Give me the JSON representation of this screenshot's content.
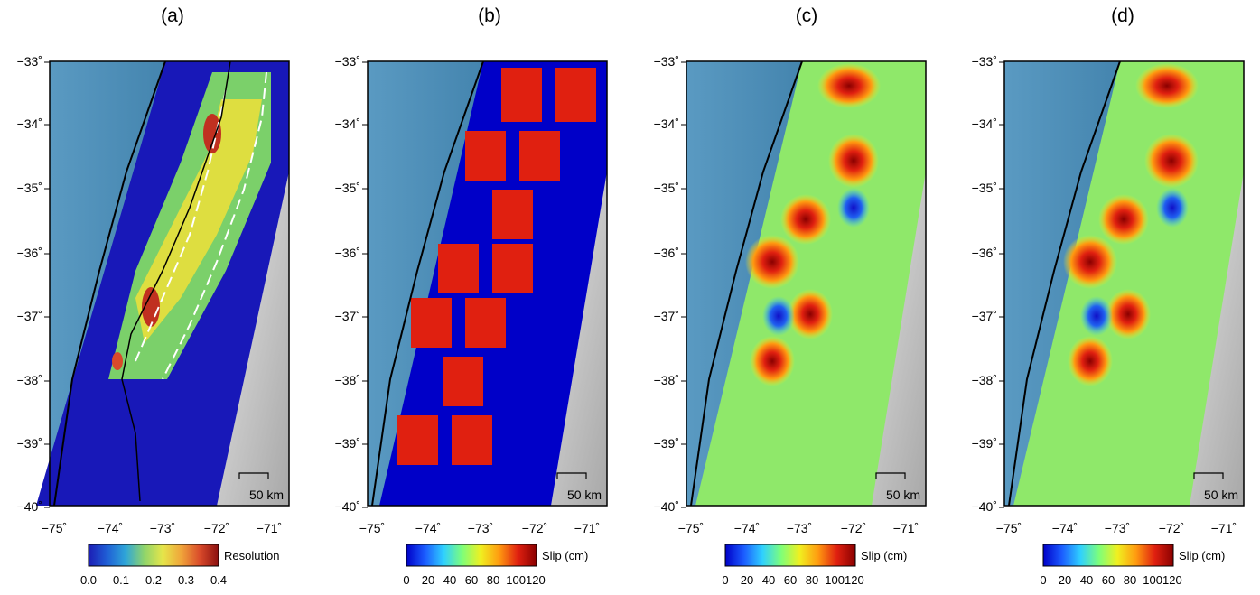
{
  "panels": [
    {
      "id": "a",
      "label": "(a)",
      "colorbar": {
        "title": "Resolution",
        "ticks": [
          "0.0",
          "0.1",
          "0.2",
          "0.3",
          "0.4"
        ],
        "palette": [
          "#1c1cb4",
          "#1f5fd6",
          "#2fa6d8",
          "#8fd46b",
          "#e6e64a",
          "#f0a43a",
          "#d94a2a",
          "#8a0f0f"
        ]
      },
      "scale_bar": "50 km"
    },
    {
      "id": "b",
      "label": "(b)",
      "colorbar": {
        "title": "Slip (cm)",
        "ticks": [
          "0",
          "20",
          "40",
          "60",
          "80",
          "100120"
        ],
        "palette": [
          "#0000c8",
          "#1b5cff",
          "#2fd0ff",
          "#7dff7a",
          "#f0f020",
          "#ff9a10",
          "#e02010",
          "#8a0000"
        ]
      },
      "scale_bar": "50 km"
    },
    {
      "id": "c",
      "label": "(c)",
      "colorbar": {
        "title": "Slip (cm)",
        "ticks": [
          "0",
          "20",
          "40",
          "60",
          "80",
          "100120"
        ],
        "palette": [
          "#0000c8",
          "#1b5cff",
          "#2fd0ff",
          "#7dff7a",
          "#f0f020",
          "#ff9a10",
          "#e02010",
          "#8a0000"
        ]
      },
      "scale_bar": "50 km"
    },
    {
      "id": "d",
      "label": "(d)",
      "colorbar": {
        "title": "Slip (cm)",
        "ticks": [
          "0",
          "20",
          "40",
          "60",
          "80",
          "100120"
        ],
        "palette": [
          "#0000c8",
          "#1b5cff",
          "#2fd0ff",
          "#7dff7a",
          "#f0f020",
          "#ff9a10",
          "#e02010",
          "#8a0000"
        ]
      },
      "scale_bar": "50 km"
    }
  ],
  "axes": {
    "lat_labels": [
      "−33˚",
      "−34˚",
      "−35˚",
      "−36˚",
      "−37˚",
      "−38˚",
      "−39˚",
      "−40˚"
    ],
    "lon_labels": [
      "−75˚",
      "−74˚",
      "−73˚",
      "−72˚",
      "−71˚"
    ]
  },
  "colors": {
    "ocean": "#3f7fa6",
    "land": "#c8c8c8",
    "frame": "#000000"
  }
}
